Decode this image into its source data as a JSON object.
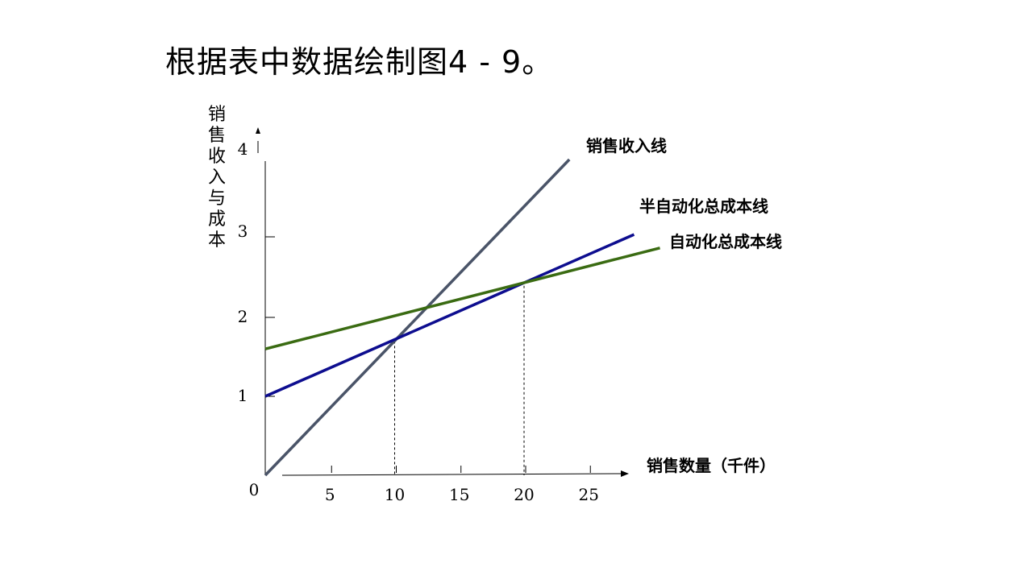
{
  "slide": {
    "title": "根据表中数据绘制图4 - 9。"
  },
  "chart_data": {
    "type": "line",
    "title": "",
    "xlabel": "销售数量（千件）",
    "ylabel": "销售收入与成本",
    "xlim": [
      0,
      28
    ],
    "ylim": [
      0,
      4.2
    ],
    "x_ticks": [
      0,
      5,
      10,
      15,
      20,
      25
    ],
    "x_tick_labels": [
      "0",
      "5",
      "10",
      "15",
      "20",
      "25"
    ],
    "y_ticks": [
      1,
      2,
      3,
      4
    ],
    "y_tick_labels": [
      "1",
      "2",
      "3",
      "4"
    ],
    "grid": false,
    "legend": "none (inline line labels)",
    "series": [
      {
        "name": "销售收入线",
        "x": [
          0,
          23.5
        ],
        "y": [
          0,
          4.0
        ],
        "color": "#4a5468"
      },
      {
        "name": "半自动化总成本线",
        "x": [
          0,
          28.5
        ],
        "y": [
          1.0,
          3.05
        ],
        "color": "#0d0d8f"
      },
      {
        "name": "自动化总成本线",
        "x": [
          0,
          30.5
        ],
        "y": [
          1.6,
          2.88
        ],
        "color": "#3a6b12"
      }
    ],
    "reference_lines": [
      {
        "x": 10,
        "y": 1.7
      },
      {
        "x": 20,
        "y": 2.4
      }
    ]
  }
}
